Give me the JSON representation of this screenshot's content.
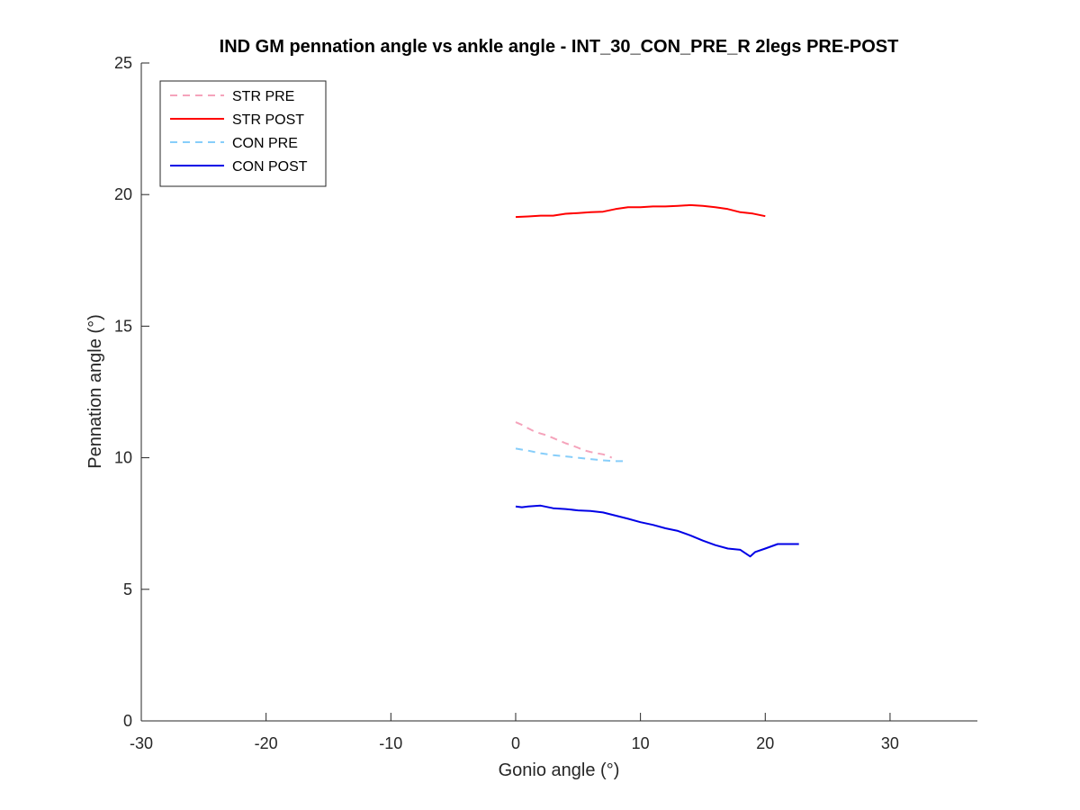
{
  "chart_data": {
    "type": "line",
    "title": "IND GM pennation angle vs ankle angle - INT_30_CON_PRE_R 2legs PRE-POST",
    "xlabel": "Gonio angle (°)",
    "ylabel": "Pennation angle (°)",
    "xlim": [
      -30,
      37
    ],
    "ylim": [
      0,
      25
    ],
    "xticks": [
      -30,
      -20,
      -10,
      0,
      10,
      20,
      30
    ],
    "yticks": [
      0,
      5,
      10,
      15,
      20,
      25
    ],
    "grid": false,
    "legend_position": "top-left",
    "series": [
      {
        "name": "STR PRE",
        "color": "#f5a3bb",
        "style": "dashed",
        "x": [
          0,
          0.5,
          1,
          1.5,
          2,
          2.5,
          3,
          3.5,
          4,
          4.5,
          5,
          5.5,
          6,
          6.5,
          7,
          7.5,
          7.7
        ],
        "y": [
          11.35,
          11.25,
          11.12,
          11.0,
          10.92,
          10.85,
          10.75,
          10.65,
          10.55,
          10.47,
          10.38,
          10.28,
          10.22,
          10.17,
          10.13,
          10.05,
          10.0
        ]
      },
      {
        "name": "STR POST",
        "color": "#ff0000",
        "style": "solid",
        "x": [
          0,
          1,
          2,
          3,
          4,
          5,
          6,
          7,
          8,
          9,
          10,
          11,
          12,
          13,
          14,
          15,
          16,
          17,
          18,
          19,
          20
        ],
        "y": [
          19.15,
          19.17,
          19.2,
          19.2,
          19.27,
          19.3,
          19.33,
          19.35,
          19.45,
          19.52,
          19.52,
          19.55,
          19.55,
          19.57,
          19.6,
          19.57,
          19.52,
          19.45,
          19.33,
          19.28,
          19.18
        ]
      },
      {
        "name": "CON PRE",
        "color": "#87cefa",
        "style": "dashed",
        "x": [
          0,
          1,
          2,
          3,
          4,
          5,
          6,
          7,
          8,
          8.7
        ],
        "y": [
          10.35,
          10.27,
          10.17,
          10.1,
          10.05,
          10.0,
          9.95,
          9.9,
          9.87,
          9.87
        ]
      },
      {
        "name": "CON POST",
        "color": "#0000e6",
        "style": "solid",
        "x": [
          0,
          0.5,
          1,
          2,
          3,
          4,
          5,
          6,
          7,
          8,
          9,
          10,
          11,
          12,
          13,
          14,
          15,
          16,
          17,
          18,
          18.8,
          19.2,
          20,
          21,
          22,
          22.7
        ],
        "y": [
          8.15,
          8.12,
          8.15,
          8.18,
          8.08,
          8.05,
          8.0,
          7.98,
          7.92,
          7.8,
          7.68,
          7.55,
          7.45,
          7.32,
          7.22,
          7.05,
          6.85,
          6.68,
          6.55,
          6.5,
          6.25,
          6.42,
          6.55,
          6.72,
          6.72,
          6.72
        ]
      }
    ]
  }
}
